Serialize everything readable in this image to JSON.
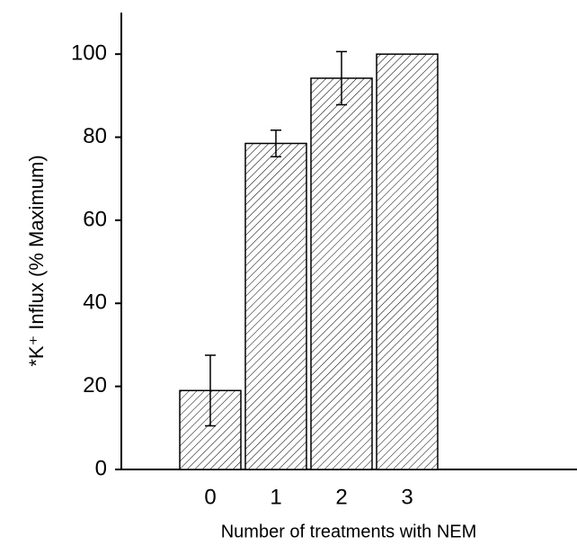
{
  "chart_data": {
    "type": "bar",
    "x_label": "Number of treatments with NEM",
    "y_label": "*K⁺ Influx (% Maximum)",
    "categories": [
      "0",
      "1",
      "2",
      "3"
    ],
    "values": [
      19,
      78.5,
      94.2,
      100
    ],
    "errors": [
      8.5,
      3.2,
      6.4,
      null
    ],
    "color": "#ffffff",
    "ylim": [
      0,
      110
    ],
    "yticks": [
      0,
      20,
      40,
      60,
      80,
      100
    ],
    "grid": false
  }
}
